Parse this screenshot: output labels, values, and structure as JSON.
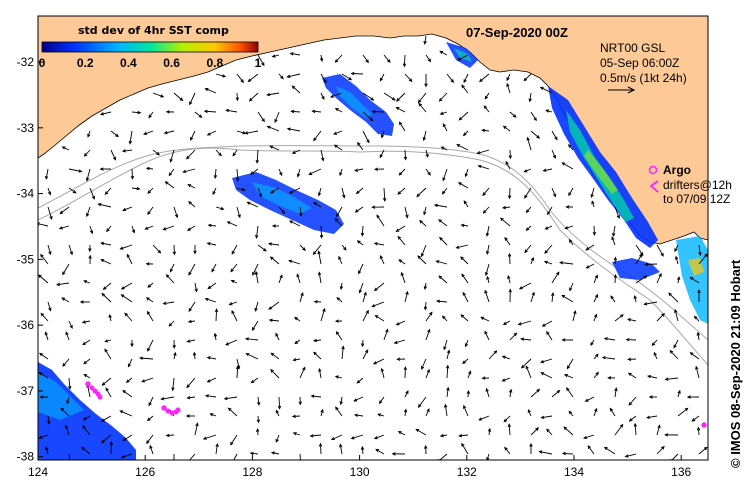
{
  "map": {
    "title": "07-Sep-2020 00Z",
    "lon_range": [
      124,
      136.5
    ],
    "lat_range": [
      -38.05,
      -31.3
    ],
    "x_ticks": [
      "124",
      "126",
      "128",
      "130",
      "132",
      "134",
      "136"
    ],
    "y_ticks": [
      "-32",
      "-33",
      "-34",
      "-35",
      "-36",
      "-37",
      "-38"
    ],
    "colors": {
      "land": "#fcc997",
      "ocean": "#ffffff",
      "arrow": "#000000",
      "contour": "#a8a8a8",
      "argo": "#ff22ff"
    }
  },
  "legend": {
    "title": "std dev of 4hr SST comp",
    "labels": [
      "0",
      "0.2",
      "0.4",
      "0.6",
      "0.8",
      "1"
    ],
    "colormap": [
      "#00008c",
      "#0032ff",
      "#00b4ff",
      "#00e6a0",
      "#b4f000",
      "#ffc800",
      "#ff5000",
      "#8c0000"
    ]
  },
  "info": {
    "model": "NRT00 GSL",
    "date": "05-Sep 06:00Z",
    "scale": "0.5m/s (1kt 24h)"
  },
  "markers": {
    "argo_label": "Argo",
    "drifters_label": "drifters@12h",
    "drifters_date": "to 07/09 12Z"
  },
  "credit": "© IMOS 08-Sep-2020 21:09 Hobart"
}
